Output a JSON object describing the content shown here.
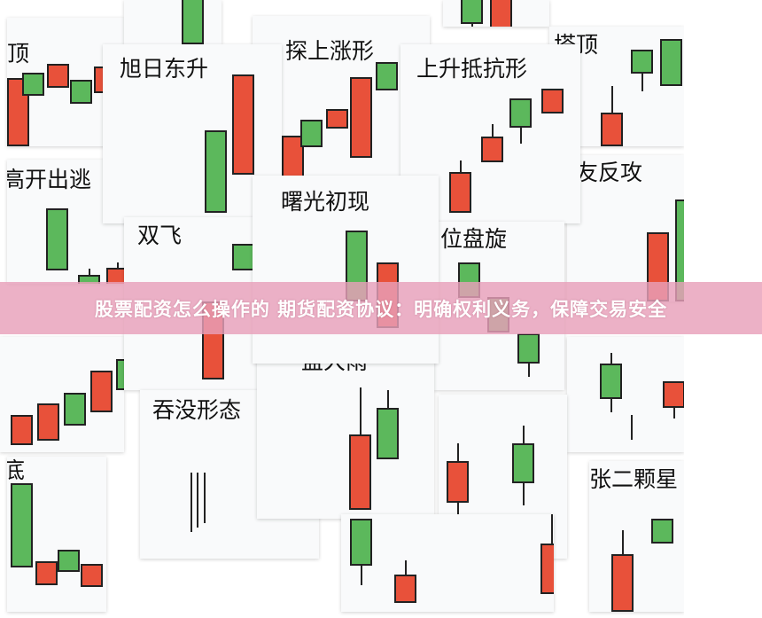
{
  "colors": {
    "up": "#e8513a",
    "down": "#5cb85c",
    "banner": "#e8a0ba"
  },
  "cards": [
    {
      "title": "顶"
    },
    {
      "title": ""
    },
    {
      "title": ""
    },
    {
      "title": "探上涨形"
    },
    {
      "title": "塔顶"
    },
    {
      "title": "高开出逃"
    },
    {
      "title": ""
    },
    {
      "title": "友反攻"
    },
    {
      "title": "旭日东升"
    },
    {
      "title": "上升抵抗形"
    },
    {
      "title": "双飞"
    },
    {
      "title": "位盘旋"
    },
    {
      "title": ""
    },
    {
      "title": ""
    },
    {
      "title": "吞没形态"
    },
    {
      "title": "盆大雨"
    },
    {
      "title": ""
    },
    {
      "title": "张二颗星"
    },
    {
      "title": "底"
    },
    {
      "title": "曙光初现"
    }
  ],
  "banner": {
    "text": "股票配资怎么操作的 期货配资协议：明确权利义务，保障交易安全"
  }
}
